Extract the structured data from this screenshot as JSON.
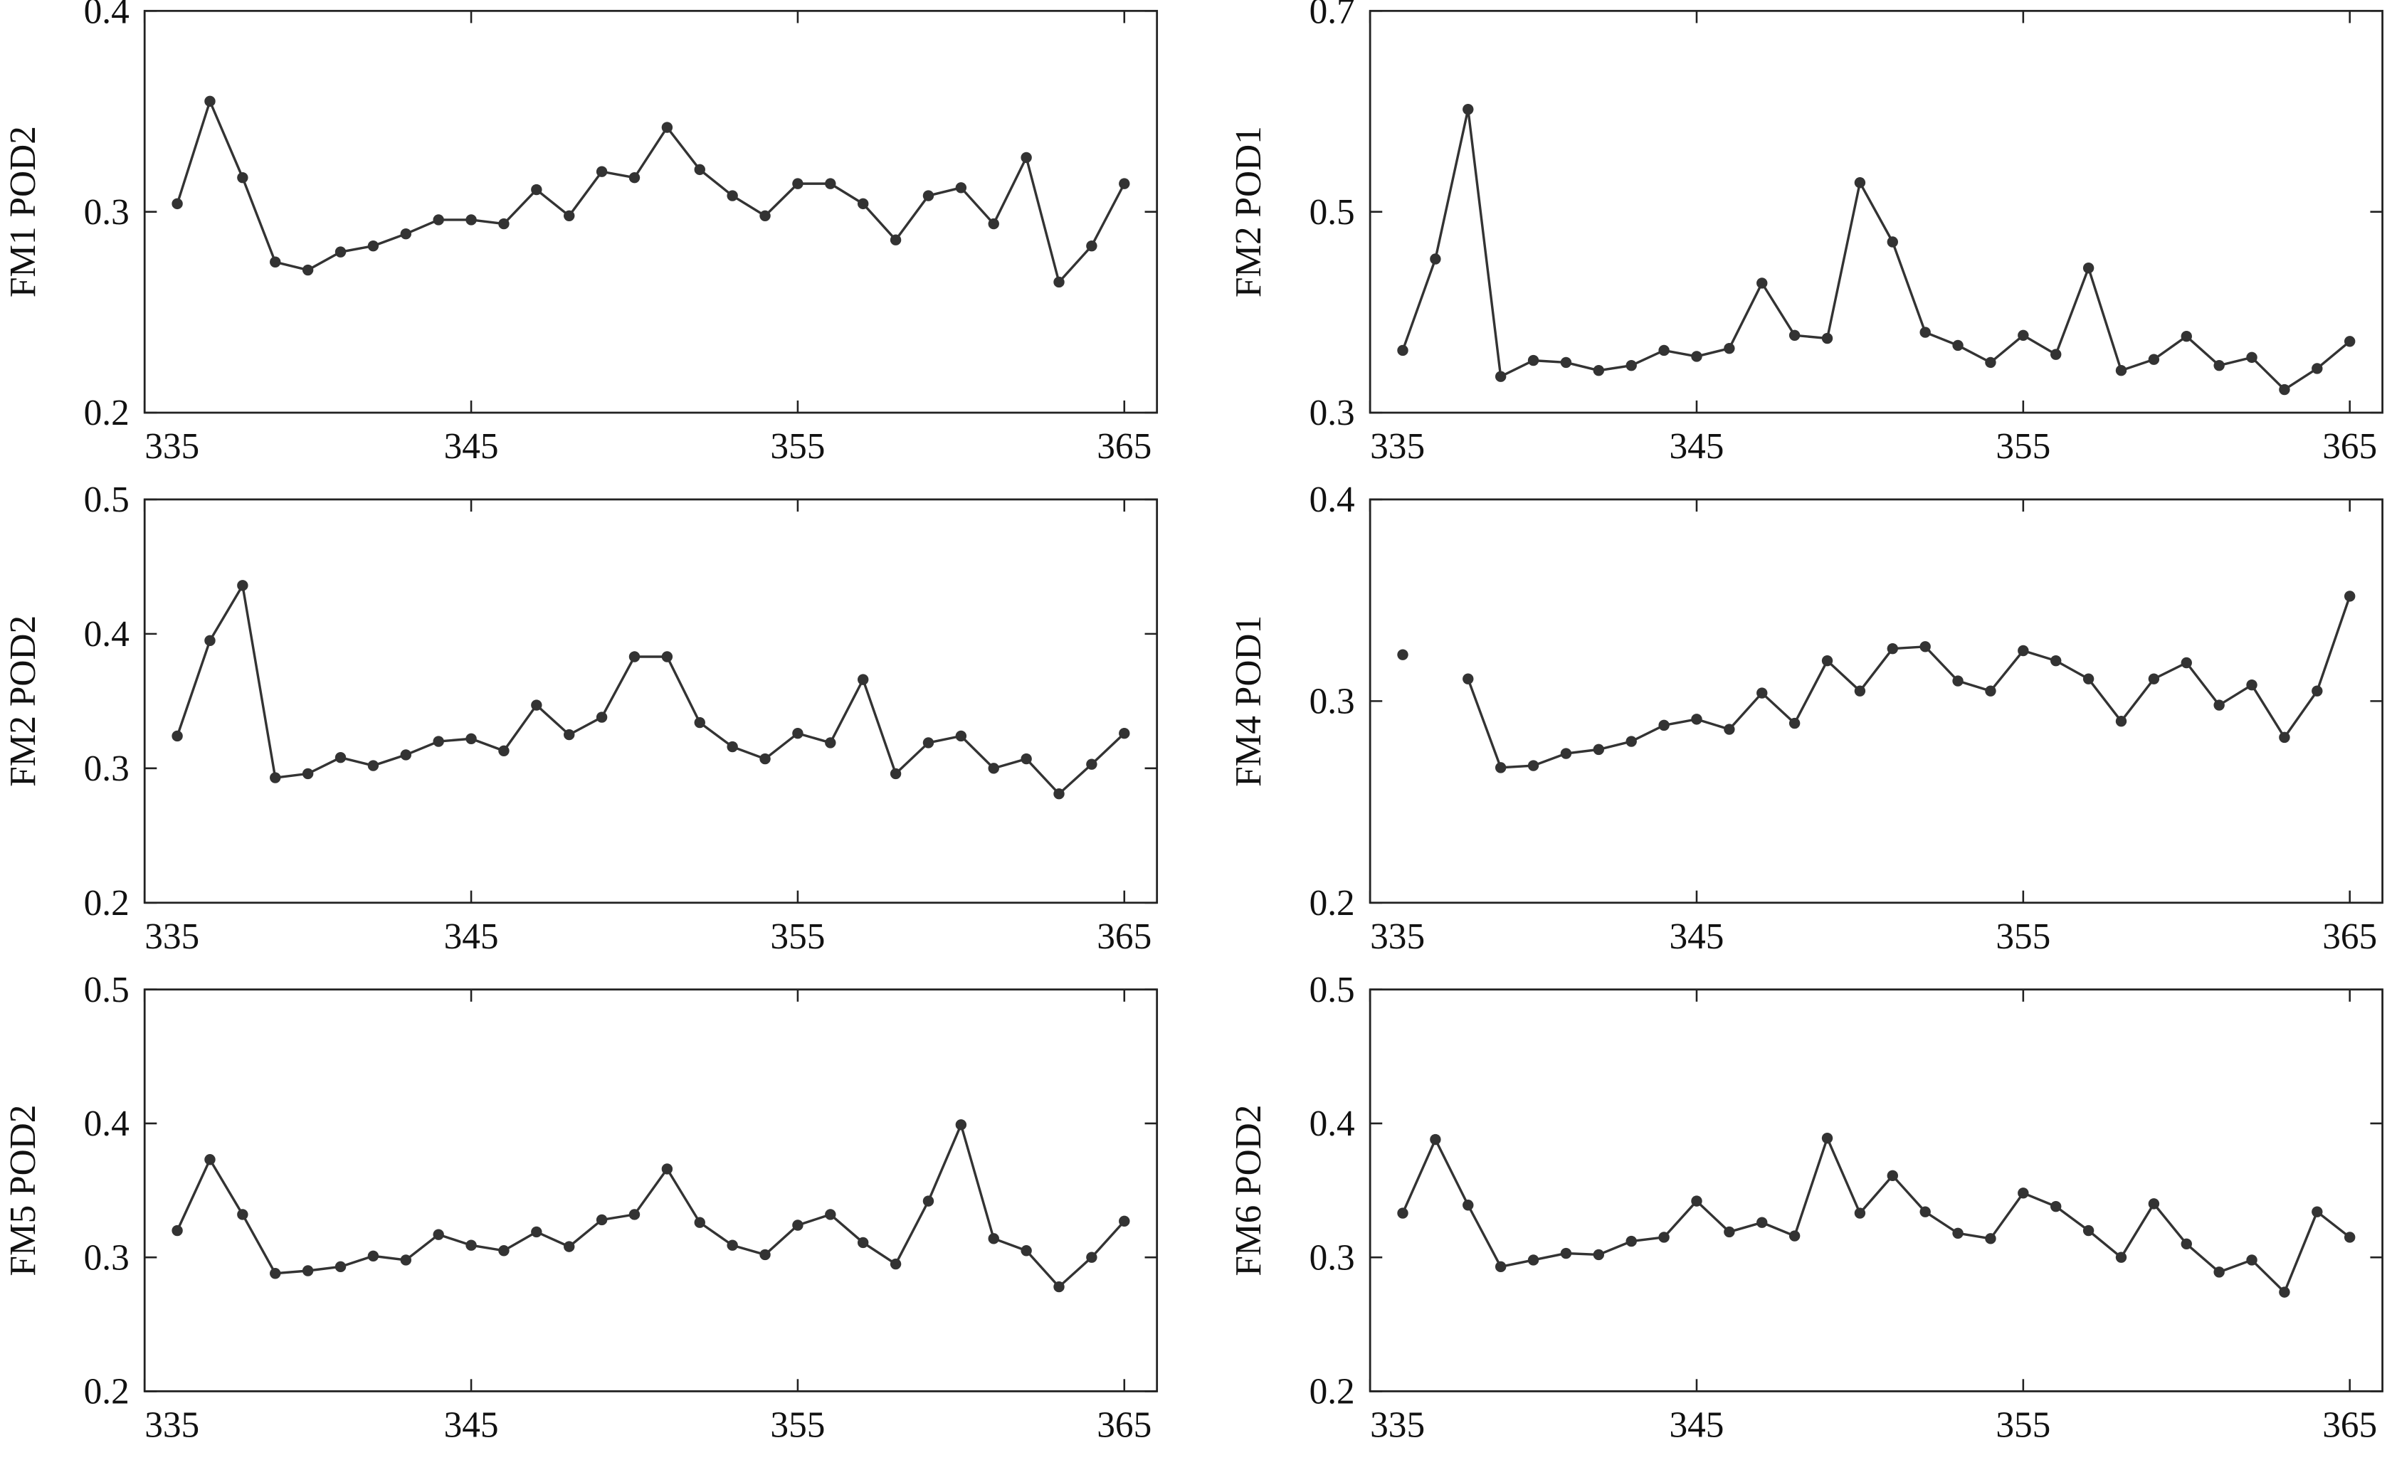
{
  "chart_data": [
    {
      "type": "line",
      "ylabel": "FM1 POD2",
      "color": "#333333",
      "x": [
        336,
        337,
        338,
        339,
        340,
        341,
        342,
        343,
        344,
        345,
        346,
        347,
        348,
        349,
        350,
        351,
        352,
        353,
        354,
        355,
        356,
        357,
        358,
        359,
        360,
        361,
        362,
        363,
        364,
        365
      ],
      "values": [
        0.304,
        0.355,
        0.317,
        0.275,
        0.271,
        0.28,
        0.283,
        0.289,
        0.296,
        0.296,
        0.294,
        0.311,
        0.298,
        0.32,
        0.317,
        0.342,
        0.321,
        0.308,
        0.298,
        0.314,
        0.314,
        0.304,
        0.286,
        0.308,
        0.312,
        0.294,
        0.327,
        0.265,
        0.283,
        0.314
      ],
      "xlim": [
        335,
        366
      ],
      "xticks": [
        335,
        345,
        355,
        365
      ],
      "ylim": [
        0.2,
        0.4
      ],
      "yticks": [
        0.2,
        0.3,
        0.4
      ]
    },
    {
      "type": "line",
      "ylabel": "FM2 POD1",
      "color": "#333333",
      "x": [
        336,
        337,
        338,
        339,
        340,
        341,
        342,
        343,
        344,
        345,
        346,
        347,
        348,
        349,
        350,
        351,
        352,
        353,
        354,
        355,
        356,
        357,
        358,
        359,
        360,
        361,
        362,
        363,
        364,
        365
      ],
      "values": [
        0.362,
        0.453,
        0.602,
        0.336,
        0.352,
        0.35,
        0.342,
        0.347,
        0.362,
        0.356,
        0.364,
        0.429,
        0.377,
        0.374,
        0.529,
        0.47,
        0.38,
        0.367,
        0.35,
        0.377,
        0.358,
        0.444,
        0.342,
        0.353,
        0.376,
        0.347,
        0.355,
        0.323,
        0.344,
        0.371
      ],
      "xlim": [
        335,
        366
      ],
      "xticks": [
        335,
        345,
        355,
        365
      ],
      "ylim": [
        0.3,
        0.7
      ],
      "yticks": [
        0.3,
        0.5,
        0.7
      ]
    },
    {
      "type": "line",
      "ylabel": "FM2 POD2",
      "color": "#333333",
      "x": [
        336,
        337,
        338,
        339,
        340,
        341,
        342,
        343,
        344,
        345,
        346,
        347,
        348,
        349,
        350,
        351,
        352,
        353,
        354,
        355,
        356,
        357,
        358,
        359,
        360,
        361,
        362,
        363,
        364,
        365
      ],
      "values": [
        0.324,
        0.395,
        0.436,
        0.293,
        0.296,
        0.308,
        0.302,
        0.31,
        0.32,
        0.322,
        0.313,
        0.347,
        0.325,
        0.338,
        0.383,
        0.383,
        0.334,
        0.316,
        0.307,
        0.326,
        0.319,
        0.366,
        0.296,
        0.319,
        0.324,
        0.3,
        0.307,
        0.281,
        0.303,
        0.326
      ],
      "xlim": [
        335,
        366
      ],
      "xticks": [
        335,
        345,
        355,
        365
      ],
      "ylim": [
        0.2,
        0.5
      ],
      "yticks": [
        0.2,
        0.3,
        0.4,
        0.5
      ]
    },
    {
      "type": "line",
      "ylabel": "FM4 POD1",
      "color": "#333333",
      "x": [
        336,
        337,
        338,
        339,
        340,
        341,
        342,
        343,
        344,
        345,
        346,
        347,
        348,
        349,
        350,
        351,
        352,
        353,
        354,
        355,
        356,
        357,
        358,
        359,
        360,
        361,
        362,
        363,
        364,
        365
      ],
      "values": [
        0.323,
        null,
        0.311,
        0.267,
        0.268,
        0.274,
        0.276,
        0.28,
        0.288,
        0.291,
        0.286,
        0.304,
        0.289,
        0.32,
        0.305,
        0.326,
        0.327,
        0.31,
        0.305,
        0.325,
        0.32,
        0.311,
        0.29,
        0.311,
        0.319,
        0.298,
        0.308,
        0.282,
        0.305,
        0.352
      ],
      "xlim": [
        335,
        366
      ],
      "xticks": [
        335,
        345,
        355,
        365
      ],
      "ylim": [
        0.2,
        0.4
      ],
      "yticks": [
        0.2,
        0.3,
        0.4
      ]
    },
    {
      "type": "line",
      "ylabel": "FM5 POD2",
      "color": "#333333",
      "x": [
        336,
        337,
        338,
        339,
        340,
        341,
        342,
        343,
        344,
        345,
        346,
        347,
        348,
        349,
        350,
        351,
        352,
        353,
        354,
        355,
        356,
        357,
        358,
        359,
        360,
        361,
        362,
        363,
        364,
        365
      ],
      "values": [
        0.32,
        0.373,
        0.332,
        0.288,
        0.29,
        0.293,
        0.301,
        0.298,
        0.317,
        0.309,
        0.305,
        0.319,
        0.308,
        0.328,
        0.332,
        0.366,
        0.326,
        0.309,
        0.302,
        0.324,
        0.332,
        0.311,
        0.295,
        0.342,
        0.399,
        0.314,
        0.305,
        0.278,
        0.3,
        0.327
      ],
      "xlim": [
        335,
        366
      ],
      "xticks": [
        335,
        345,
        355,
        365
      ],
      "ylim": [
        0.2,
        0.5
      ],
      "yticks": [
        0.2,
        0.3,
        0.4,
        0.5
      ]
    },
    {
      "type": "line",
      "ylabel": "FM6 POD2",
      "color": "#333333",
      "x": [
        336,
        337,
        338,
        339,
        340,
        341,
        342,
        343,
        344,
        345,
        346,
        347,
        348,
        349,
        350,
        351,
        352,
        353,
        354,
        355,
        356,
        357,
        358,
        359,
        360,
        361,
        362,
        363,
        364,
        365
      ],
      "values": [
        0.333,
        0.388,
        0.339,
        0.293,
        0.298,
        0.303,
        0.302,
        0.312,
        0.315,
        0.342,
        0.319,
        0.326,
        0.316,
        0.389,
        0.333,
        0.361,
        0.334,
        0.318,
        0.314,
        0.348,
        0.338,
        0.32,
        0.3,
        0.34,
        0.31,
        0.289,
        0.298,
        0.274,
        0.334,
        0.315
      ],
      "xlim": [
        335,
        366
      ],
      "xticks": [
        335,
        345,
        355,
        365
      ],
      "ylim": [
        0.2,
        0.5
      ],
      "yticks": [
        0.2,
        0.3,
        0.4,
        0.5
      ]
    }
  ]
}
